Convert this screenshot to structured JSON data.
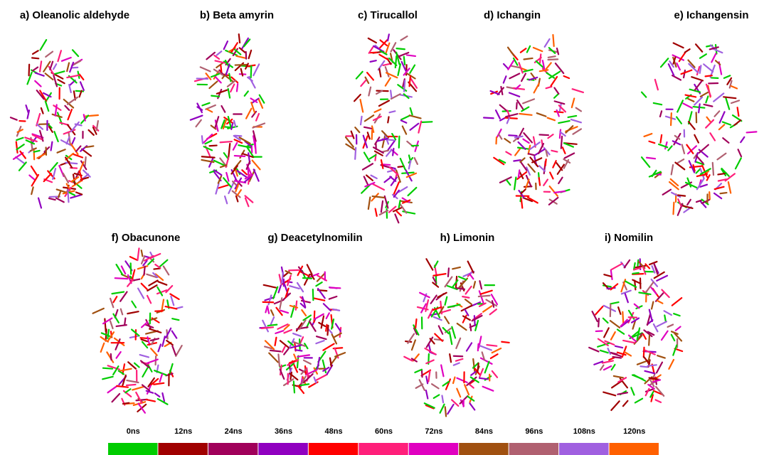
{
  "panels": [
    {
      "label": "a) Oleanolic aldehyde"
    },
    {
      "label": "b) Beta amyrin"
    },
    {
      "label": "c) Tirucallol"
    },
    {
      "label": "d) Ichangin"
    },
    {
      "label": "e) Ichangensin"
    },
    {
      "label": "f) Obacunone"
    },
    {
      "label": "g) Deacetylnomilin"
    },
    {
      "label": "h) Limonin"
    },
    {
      "label": "i) Nomilin"
    }
  ],
  "legend": [
    {
      "label": "0ns",
      "color": "#00cc00"
    },
    {
      "label": "12ns",
      "color": "#a00000"
    },
    {
      "label": "24ns",
      "color": "#a0005a"
    },
    {
      "label": "36ns",
      "color": "#9000c0"
    },
    {
      "label": "48ns",
      "color": "#ff0000"
    },
    {
      "label": "60ns",
      "color": "#ff1f7a"
    },
    {
      "label": "72ns",
      "color": "#e000c0"
    },
    {
      "label": "84ns",
      "color": "#a05010"
    },
    {
      "label": "96ns",
      "color": "#b06070"
    },
    {
      "label": "108ns",
      "color": "#a060e0"
    },
    {
      "label": "120ns",
      "color": "#ff6000"
    }
  ]
}
